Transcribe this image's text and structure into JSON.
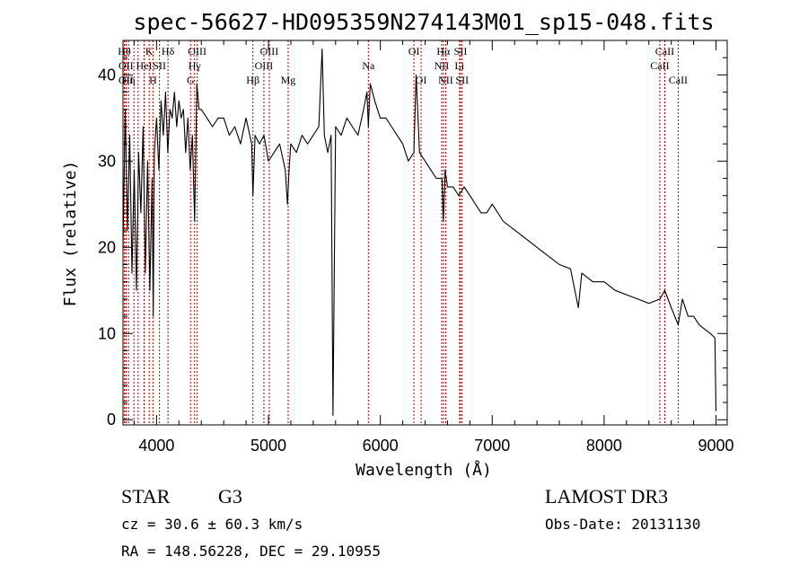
{
  "chart_data": {
    "type": "line",
    "title": "spec-56627-HD095359N274143M01_sp15-048.fits",
    "xlabel": "Wavelength (Å)",
    "ylabel": "Flux (relative)",
    "xlim": [
      3700,
      9100
    ],
    "ylim": [
      -0.6,
      44
    ],
    "x_ticks": [
      4000,
      5000,
      6000,
      7000,
      8000,
      9000
    ],
    "y_ticks": [
      0,
      10,
      20,
      30,
      40
    ],
    "series": [
      {
        "name": "spectrum",
        "x": [
          3700,
          3720,
          3740,
          3760,
          3780,
          3800,
          3820,
          3840,
          3860,
          3880,
          3900,
          3920,
          3940,
          3960,
          3970,
          3980,
          4000,
          4020,
          4040,
          4060,
          4080,
          4100,
          4120,
          4140,
          4160,
          4180,
          4200,
          4220,
          4240,
          4260,
          4280,
          4300,
          4320,
          4340,
          4360,
          4380,
          4400,
          4450,
          4500,
          4550,
          4600,
          4650,
          4700,
          4750,
          4800,
          4850,
          4861,
          4880,
          4920,
          4960,
          5000,
          5050,
          5100,
          5150,
          5170,
          5184,
          5200,
          5250,
          5300,
          5350,
          5400,
          5450,
          5480,
          5500,
          5530,
          5560,
          5577,
          5600,
          5650,
          5700,
          5750,
          5800,
          5850,
          5880,
          5893,
          5910,
          5950,
          6000,
          6050,
          6100,
          6150,
          6200,
          6250,
          6300,
          6320,
          6350,
          6400,
          6450,
          6500,
          6550,
          6563,
          6580,
          6600,
          6650,
          6700,
          6750,
          6800,
          6850,
          6900,
          6950,
          7000,
          7100,
          7200,
          7300,
          7400,
          7500,
          7600,
          7700,
          7770,
          7800,
          7900,
          8000,
          8100,
          8200,
          8300,
          8400,
          8498,
          8542,
          8600,
          8662,
          8700,
          8750,
          8800,
          8850,
          8900,
          8950,
          8990,
          9000
        ],
        "y": [
          20,
          36,
          22,
          33,
          17,
          29,
          15,
          31,
          24,
          34,
          17,
          30,
          15,
          28,
          12,
          31,
          35,
          29,
          37,
          33,
          38,
          31,
          36,
          35,
          38,
          34,
          37,
          35,
          36,
          31,
          35,
          29,
          33,
          23,
          39,
          36,
          36,
          35,
          34,
          35,
          35,
          33,
          34,
          32,
          35,
          32,
          26,
          33,
          32,
          33,
          30,
          31,
          32,
          29,
          25,
          29,
          32,
          31,
          33,
          32,
          33,
          34,
          43,
          33,
          31,
          33,
          0.5,
          34,
          33,
          35,
          34,
          33,
          36,
          38,
          34,
          39,
          37,
          35,
          35,
          34,
          33,
          32,
          30,
          31,
          40,
          31,
          30,
          29,
          28,
          28,
          23,
          29,
          27,
          27,
          26,
          27,
          26,
          25,
          24,
          24,
          25,
          23,
          22,
          21,
          20,
          19,
          18,
          17.5,
          13,
          17,
          16,
          16,
          15,
          14.5,
          14,
          13.5,
          14,
          15,
          13,
          11,
          14,
          12,
          12,
          11,
          10.5,
          10,
          9.5,
          1
        ]
      }
    ],
    "lines": [
      {
        "x": 3712,
        "label": "Hθ",
        "row": 1
      },
      {
        "x": 3727,
        "label": "OII",
        "row": 2
      },
      {
        "x": 3727,
        "label": "OII",
        "row": 3
      },
      {
        "x": 3750,
        "label": "Hη",
        "row": 3
      },
      {
        "x": 3798,
        "label": "",
        "row": 0
      },
      {
        "x": 3835,
        "label": "",
        "row": 0
      },
      {
        "x": 3889,
        "label": "HeI",
        "row": 2
      },
      {
        "x": 3934,
        "label": "K",
        "row": 1
      },
      {
        "x": 3968,
        "label": "H",
        "row": 3
      },
      {
        "x": 4026,
        "label": "SII",
        "row": 2
      },
      {
        "x": 4102,
        "label": "Hδ",
        "row": 1
      },
      {
        "x": 4304,
        "label": "G",
        "row": 3
      },
      {
        "x": 4340,
        "label": "Hγ",
        "row": 2
      },
      {
        "x": 4363,
        "label": "OIII",
        "row": 1
      },
      {
        "x": 4861,
        "label": "Hβ",
        "row": 3
      },
      {
        "x": 4959,
        "label": "OIII",
        "row": 2
      },
      {
        "x": 5007,
        "label": "OIII",
        "row": 1
      },
      {
        "x": 5176,
        "label": "Mg",
        "row": 3
      },
      {
        "x": 5893,
        "label": "Na",
        "row": 2
      },
      {
        "x": 6300,
        "label": "OI",
        "row": 1
      },
      {
        "x": 6364,
        "label": "OI",
        "row": 3
      },
      {
        "x": 6548,
        "label": "NII",
        "row": 2
      },
      {
        "x": 6563,
        "label": "Hα",
        "row": 1
      },
      {
        "x": 6584,
        "label": "NII",
        "row": 3
      },
      {
        "x": 6707,
        "label": "Li",
        "row": 2
      },
      {
        "x": 6717,
        "label": "SII",
        "row": 1
      },
      {
        "x": 6731,
        "label": "SII",
        "row": 3
      },
      {
        "x": 8498,
        "label": "CaII",
        "row": 2
      },
      {
        "x": 8542,
        "label": "CaII",
        "row": 1
      },
      {
        "x": 8662,
        "label": "CaII",
        "row": 3
      }
    ]
  },
  "info": {
    "class": "STAR",
    "subclass": "G3",
    "survey": "LAMOST DR3",
    "cz": "cz = 30.6 ± 60.3 km/s",
    "obs_date": "Obs-Date: 20131130",
    "radec": "RA = 148.56228, DEC =  29.10955"
  },
  "colors": {
    "line_marker": "#b00000",
    "spectrum": "#000000"
  }
}
